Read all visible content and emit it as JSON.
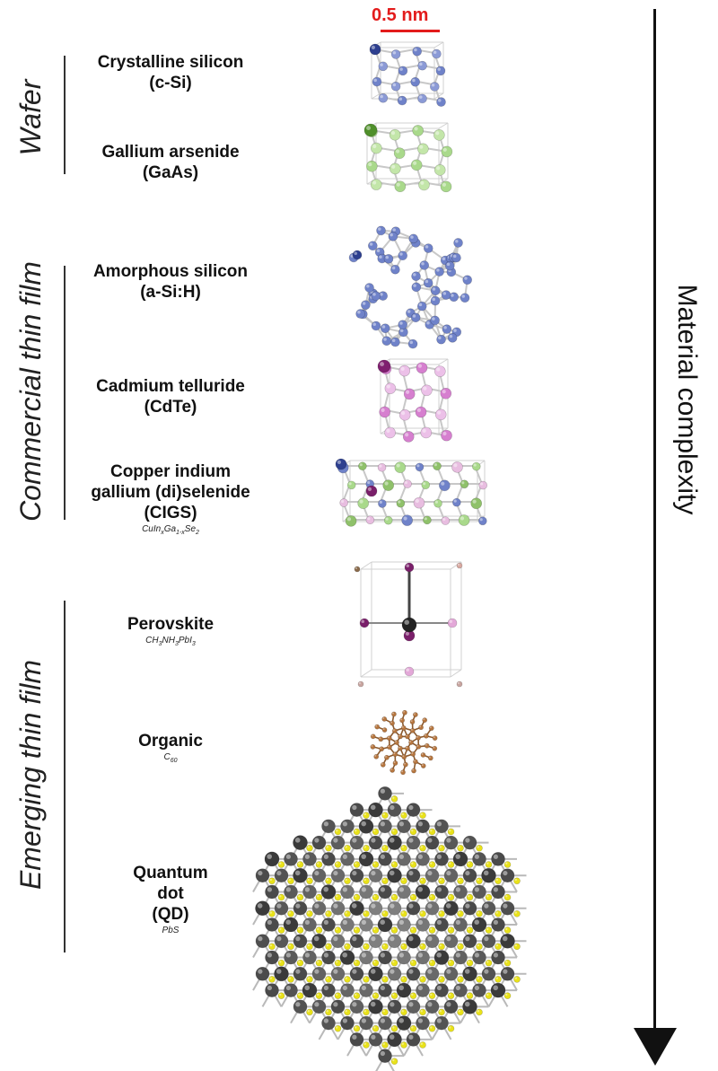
{
  "scale_bar": {
    "label": "0.5 nm",
    "color": "#e31b1b"
  },
  "axis": {
    "label": "Material complexity"
  },
  "categories": [
    {
      "label": "Wafer"
    },
    {
      "label": "Commercial  thin film"
    },
    {
      "label": "Emerging thin film"
    }
  ],
  "materials": [
    {
      "name": "Crystalline silicon",
      "abbr": "(c-Si)",
      "formula": ""
    },
    {
      "name": "Gallium arsenide",
      "abbr": "(GaAs)",
      "formula": ""
    },
    {
      "name": "Amorphous silicon",
      "abbr": "(a-Si:H)",
      "formula": ""
    },
    {
      "name": "Cadmium telluride",
      "abbr": "(CdTe)",
      "formula": ""
    },
    {
      "name_line1": "Copper indium",
      "name_line2": "gallium (di)selenide",
      "abbr": "(CIGS)",
      "formula": "CuInxGa1-xSe2"
    },
    {
      "name": "Perovskite",
      "formula": "CH3NH3PbI3"
    },
    {
      "name": "Organic",
      "formula": "C60"
    },
    {
      "name_line1": "Quantum",
      "name_line2": "dot",
      "abbr": "(QD)",
      "formula": "PbS"
    }
  ],
  "colors": {
    "silicon": "#6f82c9",
    "silicon_dark": "#2d3f8f",
    "gallium_arsenide": "#a9d98b",
    "gaas_dark": "#4f8f2a",
    "cadmium_telluride": "#d67fcf",
    "cdte_dark": "#7f1f6f",
    "perovskite_i": "#7a1f6a",
    "organic": "#b6763f",
    "qd_pb": "#4a4a4a",
    "qd_s": "#e9e21a"
  }
}
